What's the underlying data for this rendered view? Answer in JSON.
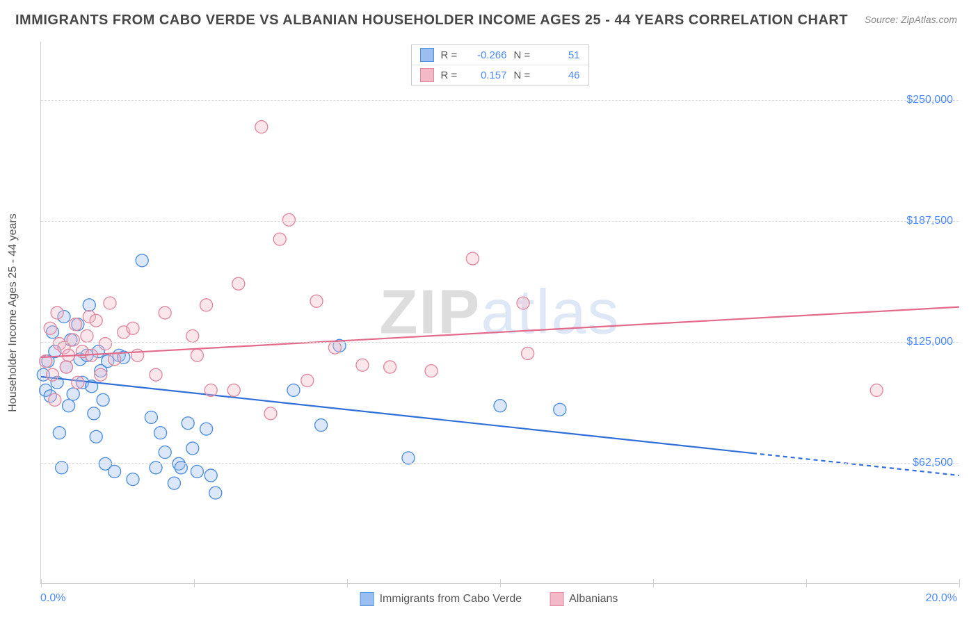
{
  "title": "IMMIGRANTS FROM CABO VERDE VS ALBANIAN HOUSEHOLDER INCOME AGES 25 - 44 YEARS CORRELATION CHART",
  "source": "Source: ZipAtlas.com",
  "watermark_a": "ZIP",
  "watermark_b": "atlas",
  "chart": {
    "type": "scatter",
    "background_color": "#ffffff",
    "grid_color": "#d9d9d9",
    "axis_color": "#cfcfcf",
    "tick_label_color": "#4b89ff",
    "yaxis_label": "Householder Income Ages 25 - 44 years",
    "yaxis_label_fontsize": 16,
    "xlim": [
      0,
      20
    ],
    "ylim": [
      0,
      280000
    ],
    "yticks": [
      62500,
      125000,
      187500,
      250000
    ],
    "ytick_labels": [
      "$62,500",
      "$125,000",
      "$187,500",
      "$250,000"
    ],
    "xticks": [
      0,
      3.33,
      6.66,
      10,
      13.33,
      16.66,
      20
    ],
    "xmin_label": "0.0%",
    "xmax_label": "20.0%",
    "marker_radius": 9,
    "marker_stroke_width": 1.4,
    "marker_fill_opacity": 0.35,
    "trend_line_width": 2.2,
    "series": [
      {
        "key": "cabo_verde",
        "label": "Immigrants from Cabo Verde",
        "color_fill": "#9bbef0",
        "color_stroke": "#4f8fe0",
        "line_color": "#2f6fd8",
        "R": "-0.266",
        "N": "51",
        "trend": {
          "y_at_xmin": 107000,
          "y_at_xmax": 56000,
          "dash_from_x": 15.5
        },
        "points": [
          [
            0.05,
            108000
          ],
          [
            0.1,
            100000
          ],
          [
            0.15,
            115000
          ],
          [
            0.2,
            97000
          ],
          [
            0.25,
            130000
          ],
          [
            0.3,
            120000
          ],
          [
            0.35,
            104000
          ],
          [
            0.4,
            78000
          ],
          [
            0.45,
            60000
          ],
          [
            0.5,
            138000
          ],
          [
            0.55,
            112000
          ],
          [
            0.6,
            92000
          ],
          [
            0.65,
            126000
          ],
          [
            0.7,
            98000
          ],
          [
            0.8,
            134000
          ],
          [
            0.85,
            116000
          ],
          [
            0.9,
            104000
          ],
          [
            1.0,
            118000
          ],
          [
            1.05,
            144000
          ],
          [
            1.1,
            102000
          ],
          [
            1.15,
            88000
          ],
          [
            1.2,
            76000
          ],
          [
            1.25,
            120000
          ],
          [
            1.3,
            110000
          ],
          [
            1.35,
            95000
          ],
          [
            1.4,
            62000
          ],
          [
            1.45,
            115000
          ],
          [
            1.6,
            58000
          ],
          [
            1.7,
            118000
          ],
          [
            1.8,
            117000
          ],
          [
            2.0,
            54000
          ],
          [
            2.2,
            167000
          ],
          [
            2.4,
            86000
          ],
          [
            2.5,
            60000
          ],
          [
            2.6,
            78000
          ],
          [
            2.7,
            68000
          ],
          [
            2.9,
            52000
          ],
          [
            3.0,
            62000
          ],
          [
            3.05,
            60000
          ],
          [
            3.2,
            83000
          ],
          [
            3.3,
            70000
          ],
          [
            3.4,
            58000
          ],
          [
            3.6,
            80000
          ],
          [
            3.7,
            56000
          ],
          [
            3.8,
            47000
          ],
          [
            5.5,
            100000
          ],
          [
            6.1,
            82000
          ],
          [
            6.5,
            123000
          ],
          [
            8.0,
            65000
          ],
          [
            10.0,
            92000
          ],
          [
            11.3,
            90000
          ]
        ]
      },
      {
        "key": "albanians",
        "label": "Albanians",
        "color_fill": "#f3b9c6",
        "color_stroke": "#e08aa0",
        "line_color": "#e26a8a",
        "R": "0.157",
        "N": "46",
        "trend": {
          "y_at_xmin": 117000,
          "y_at_xmax": 143000,
          "dash_from_x": 20
        },
        "points": [
          [
            0.1,
            115000
          ],
          [
            0.2,
            132000
          ],
          [
            0.25,
            108000
          ],
          [
            0.3,
            95000
          ],
          [
            0.35,
            140000
          ],
          [
            0.4,
            124000
          ],
          [
            0.5,
            122000
          ],
          [
            0.55,
            112000
          ],
          [
            0.6,
            118000
          ],
          [
            0.7,
            126000
          ],
          [
            0.75,
            134000
          ],
          [
            0.8,
            104000
          ],
          [
            0.9,
            120000
          ],
          [
            1.0,
            128000
          ],
          [
            1.05,
            138000
          ],
          [
            1.1,
            118000
          ],
          [
            1.2,
            136000
          ],
          [
            1.3,
            108000
          ],
          [
            1.4,
            124000
          ],
          [
            1.5,
            145000
          ],
          [
            1.6,
            116000
          ],
          [
            1.8,
            130000
          ],
          [
            2.0,
            132000
          ],
          [
            2.1,
            118000
          ],
          [
            2.5,
            108000
          ],
          [
            2.7,
            140000
          ],
          [
            3.3,
            128000
          ],
          [
            3.4,
            118000
          ],
          [
            3.6,
            144000
          ],
          [
            3.7,
            100000
          ],
          [
            4.2,
            100000
          ],
          [
            4.3,
            155000
          ],
          [
            4.8,
            236000
          ],
          [
            5.0,
            88000
          ],
          [
            5.2,
            178000
          ],
          [
            5.4,
            188000
          ],
          [
            5.8,
            105000
          ],
          [
            6.0,
            146000
          ],
          [
            6.4,
            122000
          ],
          [
            7.0,
            113000
          ],
          [
            7.6,
            112000
          ],
          [
            8.5,
            110000
          ],
          [
            9.4,
            168000
          ],
          [
            10.5,
            145000
          ],
          [
            10.6,
            119000
          ],
          [
            18.2,
            100000
          ]
        ]
      }
    ],
    "legend_bottom": [
      {
        "key": "cabo_verde"
      },
      {
        "key": "albanians"
      }
    ]
  }
}
